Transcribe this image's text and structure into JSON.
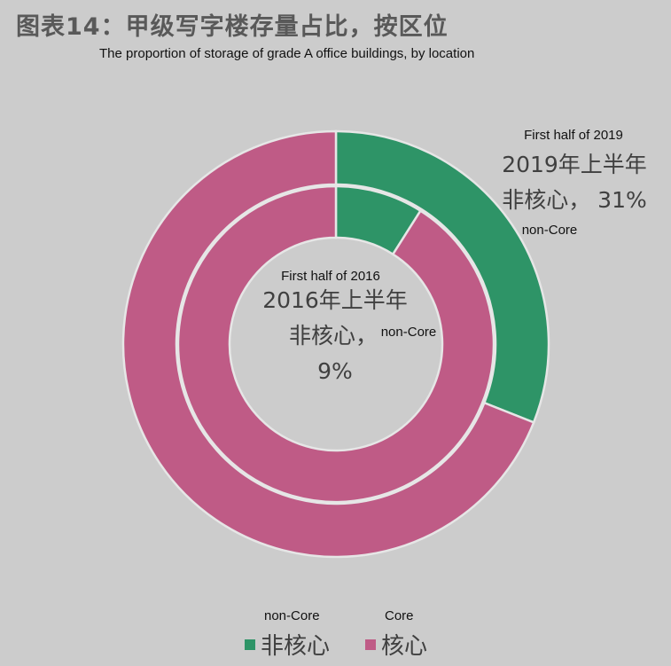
{
  "title_cn": "图表14：甲级写字楼存量占比，按区位",
  "title_en": "The proportion of storage of grade A office buildings, by location",
  "colors": {
    "non_core": "#2e9467",
    "core": "#bf5b86",
    "background": "#cccccc",
    "separator": "#e6e6e6"
  },
  "chart_data": {
    "type": "pie",
    "subtype": "nested-donut",
    "rings": [
      {
        "position": "outer",
        "period_en": "First half of 2019",
        "label_line1": "2019年上半年",
        "label_line2": "非核心， 31%",
        "label_en": "non-Core",
        "values": [
          31,
          69
        ]
      },
      {
        "position": "inner",
        "period_en": "First half of 2016",
        "label_line1": "2016年上半年",
        "label_line2": "非核心，",
        "label_line3": "9%",
        "label_en": "non-Core",
        "values": [
          9,
          91
        ]
      }
    ],
    "categories_cn": [
      "非核心",
      "核心"
    ],
    "categories_en": [
      "non-Core",
      "Core"
    ],
    "legend_position": "bottom"
  }
}
